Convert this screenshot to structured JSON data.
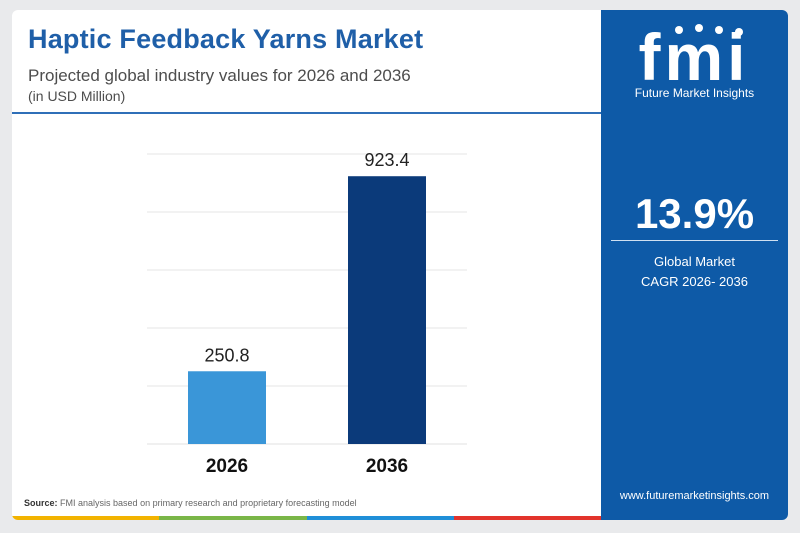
{
  "header": {
    "title": "Haptic Feedback Yarns Market",
    "subtitle": "Projected global industry values for 2026 and 2036",
    "unit": "(in USD Million)"
  },
  "chart_data": {
    "type": "bar",
    "title": "Haptic Feedback Yarns Market",
    "subtitle": "Projected global industry values for 2026 and 2036",
    "ylabel": "(in USD Million)",
    "categories": [
      "2026",
      "2036"
    ],
    "values": [
      250.8,
      923.4
    ],
    "data_labels": [
      "250.8",
      "923.4"
    ],
    "ylim": [
      0,
      1000
    ],
    "grid": true,
    "colors": [
      "#3a96d8",
      "#0b3a7a"
    ]
  },
  "source": {
    "label": "Source:",
    "text": "FMI analysis based on primary research and proprietary forecasting model"
  },
  "brand": {
    "logo_text": "fmi",
    "name": "Future Market Insights",
    "website": "www.futuremarketinsights.com",
    "panel_color": "#0e5aa7"
  },
  "highlight": {
    "value": "13.9%",
    "label_line1": "Global Market",
    "label_line2": "CAGR 2026- 2036"
  },
  "footer_colors": [
    "#f2b300",
    "#7ab648",
    "#1f8fd8",
    "#e2332b"
  ]
}
